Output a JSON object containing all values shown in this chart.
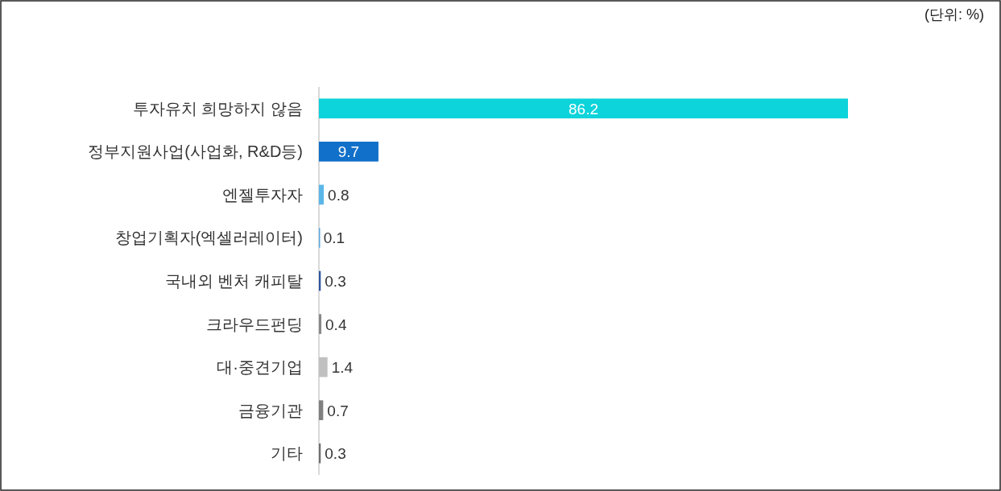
{
  "chart_data": {
    "type": "bar",
    "orientation": "horizontal",
    "data_labels": true,
    "annotations": [
      "(단위: %)"
    ],
    "categories": [
      "투자유치 희망하지 않음",
      "정부지원사업(사업화, R&D등)",
      "엔젤투자자",
      "창업기획자(엑셀러레이터)",
      "국내외 벤처 캐피탈",
      "크라우드펀딩",
      "대·중견기업",
      "금융기관",
      "기타"
    ],
    "values": [
      86.2,
      9.7,
      0.8,
      0.1,
      0.3,
      0.4,
      1.4,
      0.7,
      0.3
    ],
    "colors": [
      "#0dd3da",
      "#1170c9",
      "#5bb6ea",
      "#5aa8e0",
      "#2f55a0",
      "#888888",
      "#c0c0c0",
      "#808080",
      "#707070"
    ]
  }
}
